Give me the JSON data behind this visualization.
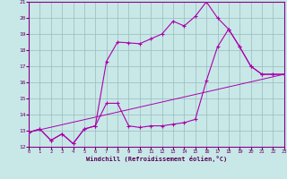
{
  "bg_color": "#c8e8e8",
  "grid_color": "#99bbbb",
  "line_color": "#aa00aa",
  "xlim": [
    0,
    23
  ],
  "ylim": [
    12,
    21
  ],
  "xticks": [
    0,
    1,
    2,
    3,
    4,
    5,
    6,
    7,
    8,
    9,
    10,
    11,
    12,
    13,
    14,
    15,
    16,
    17,
    18,
    19,
    20,
    21,
    22,
    23
  ],
  "yticks": [
    12,
    13,
    14,
    15,
    16,
    17,
    18,
    19,
    20,
    21
  ],
  "xlabel": "Windchill (Refroidissement éolien,°C)",
  "line1_x": [
    0,
    1,
    2,
    3,
    4,
    5,
    6,
    7,
    8,
    9,
    10,
    11,
    12,
    13,
    14,
    15,
    16,
    17,
    18,
    19,
    20,
    21,
    22,
    23
  ],
  "line1_y": [
    12.9,
    13.1,
    12.4,
    12.8,
    12.2,
    13.1,
    13.3,
    17.3,
    18.5,
    18.45,
    18.4,
    18.7,
    19.0,
    19.8,
    19.5,
    20.1,
    21.0,
    20.0,
    19.3,
    18.2,
    17.0,
    16.5,
    16.5,
    16.5
  ],
  "line2_x": [
    0,
    1,
    2,
    3,
    4,
    5,
    6,
    7,
    8,
    9,
    10,
    11,
    12,
    13,
    14,
    15,
    16,
    17,
    18,
    19,
    20,
    21,
    22,
    23
  ],
  "line2_y": [
    12.9,
    13.1,
    12.4,
    12.8,
    12.2,
    13.1,
    13.3,
    14.7,
    14.7,
    13.3,
    13.2,
    13.3,
    13.3,
    13.4,
    13.5,
    13.7,
    16.1,
    18.2,
    19.3,
    18.2,
    17.0,
    16.5,
    16.5,
    16.5
  ],
  "line3_x": [
    0,
    23
  ],
  "line3_y": [
    12.9,
    16.5
  ]
}
